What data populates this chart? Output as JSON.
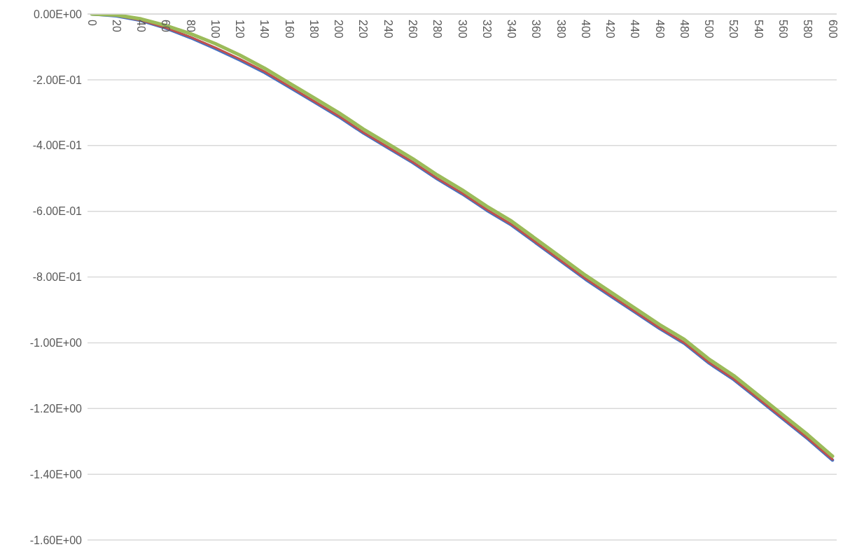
{
  "chart_data": {
    "type": "line",
    "categories": [
      "0",
      "20",
      "40",
      "60",
      "80",
      "100",
      "120",
      "140",
      "160",
      "180",
      "200",
      "220",
      "240",
      "260",
      "280",
      "300",
      "320",
      "340",
      "360",
      "380",
      "400",
      "420",
      "440",
      "460",
      "480",
      "500",
      "520",
      "540",
      "560",
      "580",
      "600"
    ],
    "series": [
      {
        "color": "#4472c4",
        "values": [
          0,
          -0.006,
          -0.02,
          -0.043,
          -0.072,
          -0.105,
          -0.14,
          -0.178,
          -0.222,
          -0.267,
          -0.312,
          -0.362,
          -0.407,
          -0.452,
          -0.502,
          -0.547,
          -0.597,
          -0.642,
          -0.697,
          -0.752,
          -0.807,
          -0.857,
          -0.907,
          -0.957,
          -1.002,
          -1.062,
          -1.112,
          -1.172,
          -1.232,
          -1.292,
          -1.357
        ]
      },
      {
        "color": "#c0504d",
        "values": [
          0,
          -0.005,
          -0.019,
          -0.042,
          -0.07,
          -0.102,
          -0.137,
          -0.175,
          -0.22,
          -0.265,
          -0.31,
          -0.36,
          -0.405,
          -0.45,
          -0.5,
          -0.545,
          -0.595,
          -0.64,
          -0.695,
          -0.75,
          -0.805,
          -0.855,
          -0.905,
          -0.955,
          -1.0,
          -1.06,
          -1.11,
          -1.17,
          -1.23,
          -1.29,
          -1.355
        ]
      },
      {
        "color": "#9bbb59",
        "values": [
          0,
          -0.003,
          -0.015,
          -0.035,
          -0.06,
          -0.09,
          -0.125,
          -0.165,
          -0.21,
          -0.255,
          -0.3,
          -0.35,
          -0.395,
          -0.44,
          -0.49,
          -0.535,
          -0.585,
          -0.63,
          -0.685,
          -0.74,
          -0.795,
          -0.845,
          -0.895,
          -0.945,
          -0.99,
          -1.05,
          -1.1,
          -1.16,
          -1.22,
          -1.28,
          -1.345
        ]
      }
    ],
    "ylim": [
      -1.6,
      0
    ],
    "yticks": [
      {
        "value": 0,
        "label": "0.00E+00"
      },
      {
        "value": -0.2,
        "label": "-2.00E-01"
      },
      {
        "value": -0.4,
        "label": "-4.00E-01"
      },
      {
        "value": -0.6,
        "label": "-6.00E-01"
      },
      {
        "value": -0.8,
        "label": "-8.00E-01"
      },
      {
        "value": -1.0,
        "label": "-1.00E+00"
      },
      {
        "value": -1.2,
        "label": "-1.20E+00"
      },
      {
        "value": -1.4,
        "label": "-1.40E+00"
      },
      {
        "value": -1.6,
        "label": "-1.60E+00"
      }
    ],
    "grid": "y",
    "legend": false,
    "marker": "none",
    "line_style": "solid"
  }
}
